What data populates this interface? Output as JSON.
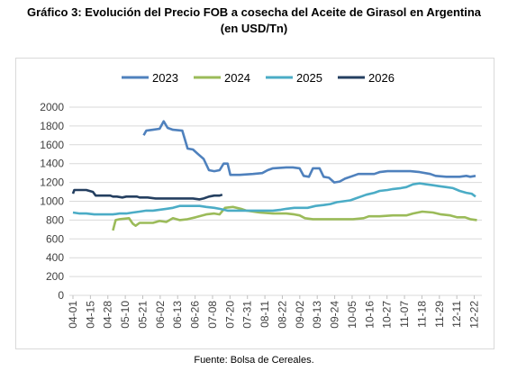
{
  "title_line1": "Gráfico 3: Evolución del Precio FOB a cosecha del Aceite de Girasol en Argentina",
  "title_line2": "(en USD/Tn)",
  "source": "Fuente: Bolsa de Cereales.",
  "chart_data": {
    "type": "line",
    "title": "Gráfico 3: Evolución del Precio FOB a cosecha del Aceite de Girasol en Argentina (en USD/Tn)",
    "xlabel": "",
    "ylabel": "",
    "ylim": [
      0,
      2000
    ],
    "yticks": [
      0,
      200,
      400,
      600,
      800,
      1000,
      1200,
      1400,
      1600,
      1800,
      2000
    ],
    "xticks": [
      "04-01",
      "04-15",
      "04-28",
      "05-10",
      "05-21",
      "06-02",
      "06-13",
      "06-26",
      "07-08",
      "07-20",
      "07-31",
      "08-11",
      "08-22",
      "09-02",
      "09-13",
      "09-24",
      "10-05",
      "10-16",
      "10-27",
      "11-07",
      "11-18",
      "11-29",
      "12-11",
      "12-22"
    ],
    "x_unit": "día-mes (posición a lo largo del eje)",
    "grid": "horizontal",
    "legend": "top",
    "series": [
      {
        "name": "2023",
        "color": "#4f81bd",
        "points": [
          [
            5.3,
            1700
          ],
          [
            5.5,
            1750
          ],
          [
            6.0,
            1760
          ],
          [
            6.5,
            1770
          ],
          [
            6.8,
            1850
          ],
          [
            7.1,
            1780
          ],
          [
            7.5,
            1760
          ],
          [
            8.2,
            1750
          ],
          [
            8.6,
            1560
          ],
          [
            9.0,
            1550
          ],
          [
            9.4,
            1500
          ],
          [
            9.8,
            1450
          ],
          [
            10.2,
            1330
          ],
          [
            10.6,
            1320
          ],
          [
            11.0,
            1330
          ],
          [
            11.3,
            1400
          ],
          [
            11.6,
            1400
          ],
          [
            11.8,
            1280
          ],
          [
            12.5,
            1280
          ],
          [
            13.5,
            1290
          ],
          [
            14.2,
            1300
          ],
          [
            14.6,
            1330
          ],
          [
            15.0,
            1350
          ],
          [
            16.0,
            1360
          ],
          [
            16.5,
            1360
          ],
          [
            17.0,
            1350
          ],
          [
            17.3,
            1270
          ],
          [
            17.7,
            1260
          ],
          [
            18.0,
            1350
          ],
          [
            18.5,
            1350
          ],
          [
            18.8,
            1260
          ],
          [
            19.2,
            1250
          ],
          [
            19.6,
            1200
          ],
          [
            20.0,
            1210
          ],
          [
            20.4,
            1240
          ],
          [
            21.0,
            1270
          ],
          [
            21.4,
            1290
          ],
          [
            22.0,
            1290
          ],
          [
            22.6,
            1290
          ],
          [
            23.0,
            1310
          ],
          [
            23.6,
            1320
          ],
          [
            24.4,
            1320
          ],
          [
            25.3,
            1320
          ],
          [
            26.0,
            1310
          ],
          [
            26.8,
            1290
          ],
          [
            27.2,
            1270
          ],
          [
            28.0,
            1260
          ],
          [
            29.0,
            1260
          ],
          [
            29.5,
            1270
          ],
          [
            29.8,
            1260
          ],
          [
            30.2,
            1270
          ]
        ]
      },
      {
        "name": "2024",
        "color": "#9bbb59",
        "points": [
          [
            3.0,
            690
          ],
          [
            3.2,
            800
          ],
          [
            3.5,
            810
          ],
          [
            4.2,
            820
          ],
          [
            4.5,
            760
          ],
          [
            4.7,
            740
          ],
          [
            5.0,
            770
          ],
          [
            6.0,
            770
          ],
          [
            6.5,
            790
          ],
          [
            7.0,
            780
          ],
          [
            7.5,
            820
          ],
          [
            8.0,
            800
          ],
          [
            8.6,
            810
          ],
          [
            9.2,
            830
          ],
          [
            10.0,
            860
          ],
          [
            10.6,
            870
          ],
          [
            11.0,
            860
          ],
          [
            11.4,
            930
          ],
          [
            12.0,
            940
          ],
          [
            12.6,
            920
          ],
          [
            13.0,
            900
          ],
          [
            14.0,
            880
          ],
          [
            15.0,
            870
          ],
          [
            16.0,
            870
          ],
          [
            16.6,
            860
          ],
          [
            17.0,
            850
          ],
          [
            17.4,
            820
          ],
          [
            18.0,
            810
          ],
          [
            19.0,
            810
          ],
          [
            20.0,
            810
          ],
          [
            21.0,
            810
          ],
          [
            21.8,
            820
          ],
          [
            22.2,
            840
          ],
          [
            23.0,
            840
          ],
          [
            24.0,
            850
          ],
          [
            25.0,
            850
          ],
          [
            25.5,
            870
          ],
          [
            26.2,
            890
          ],
          [
            27.0,
            880
          ],
          [
            27.6,
            860
          ],
          [
            28.3,
            850
          ],
          [
            28.8,
            830
          ],
          [
            29.4,
            830
          ],
          [
            29.8,
            810
          ],
          [
            30.3,
            800
          ]
        ]
      },
      {
        "name": "2025",
        "color": "#4bacc6",
        "points": [
          [
            0.0,
            880
          ],
          [
            0.5,
            870
          ],
          [
            1.0,
            870
          ],
          [
            1.6,
            860
          ],
          [
            2.2,
            860
          ],
          [
            3.0,
            860
          ],
          [
            3.5,
            870
          ],
          [
            4.0,
            870
          ],
          [
            4.5,
            880
          ],
          [
            5.0,
            890
          ],
          [
            5.5,
            900
          ],
          [
            6.0,
            900
          ],
          [
            6.5,
            910
          ],
          [
            7.0,
            920
          ],
          [
            7.5,
            930
          ],
          [
            8.0,
            950
          ],
          [
            9.0,
            950
          ],
          [
            9.5,
            950
          ],
          [
            10.0,
            940
          ],
          [
            10.6,
            930
          ],
          [
            11.0,
            920
          ],
          [
            11.6,
            900
          ],
          [
            12.0,
            900
          ],
          [
            13.0,
            900
          ],
          [
            14.0,
            900
          ],
          [
            15.0,
            900
          ],
          [
            15.6,
            910
          ],
          [
            16.0,
            920
          ],
          [
            16.6,
            930
          ],
          [
            17.0,
            930
          ],
          [
            17.6,
            930
          ],
          [
            18.2,
            950
          ],
          [
            18.8,
            960
          ],
          [
            19.3,
            970
          ],
          [
            19.8,
            990
          ],
          [
            20.3,
            1000
          ],
          [
            20.8,
            1010
          ],
          [
            21.2,
            1030
          ],
          [
            21.6,
            1050
          ],
          [
            22.0,
            1070
          ],
          [
            22.6,
            1090
          ],
          [
            23.0,
            1110
          ],
          [
            23.6,
            1120
          ],
          [
            24.0,
            1130
          ],
          [
            24.6,
            1140
          ],
          [
            25.0,
            1150
          ],
          [
            25.5,
            1180
          ],
          [
            26.0,
            1190
          ],
          [
            26.5,
            1180
          ],
          [
            27.0,
            1170
          ],
          [
            27.5,
            1160
          ],
          [
            28.0,
            1150
          ],
          [
            28.5,
            1140
          ],
          [
            29.0,
            1110
          ],
          [
            29.5,
            1090
          ],
          [
            29.9,
            1080
          ],
          [
            30.2,
            1050
          ]
        ]
      },
      {
        "name": "2026",
        "color": "#243f60",
        "points": [
          [
            0.0,
            1080
          ],
          [
            0.1,
            1120
          ],
          [
            1.0,
            1120
          ],
          [
            1.5,
            1100
          ],
          [
            1.7,
            1060
          ],
          [
            2.2,
            1060
          ],
          [
            2.8,
            1060
          ],
          [
            3.0,
            1050
          ],
          [
            3.3,
            1050
          ],
          [
            3.7,
            1040
          ],
          [
            4.0,
            1050
          ],
          [
            4.8,
            1050
          ],
          [
            5.0,
            1040
          ],
          [
            5.6,
            1040
          ],
          [
            6.2,
            1030
          ],
          [
            7.0,
            1030
          ],
          [
            8.0,
            1030
          ],
          [
            9.0,
            1030
          ],
          [
            9.5,
            1020
          ],
          [
            9.8,
            1030
          ],
          [
            10.2,
            1050
          ],
          [
            10.6,
            1060
          ],
          [
            11.0,
            1060
          ],
          [
            11.2,
            1070
          ]
        ]
      }
    ]
  }
}
